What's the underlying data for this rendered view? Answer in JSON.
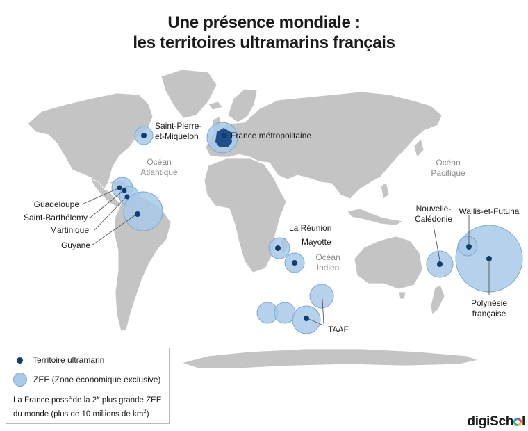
{
  "title": {
    "line1": "Une présence mondiale :",
    "line2": "les territoires ultramarins français"
  },
  "oceans": {
    "atlantic": [
      "Océan",
      "Atlantique"
    ],
    "pacific": [
      "Océan",
      "Pacifique"
    ],
    "indian": [
      "Océan",
      "Indien"
    ]
  },
  "territories": {
    "spm": [
      "Saint-Pierre-",
      "et-Miquelon"
    ],
    "france": "France métropolitaine",
    "guadeloupe": "Guadeloupe",
    "st_barth": "Saint-Barthélemy",
    "martinique": "Martinique",
    "guyane": "Guyane",
    "reunion": "La Réunion",
    "mayotte": "Mayotte",
    "taaf": "TAAF",
    "nc": [
      "Nouvelle-",
      "Calédonie"
    ],
    "wf": "Wallis-et-Futuna",
    "pf": [
      "Polynésie",
      "française"
    ]
  },
  "legend": {
    "territory": "Territoire ultramarin",
    "zee": "ZEE (Zone économique exclusive)",
    "note_line1_pre": "La France possède la 2",
    "note_line1_sup": "e",
    "note_line1_post": " plus grande ZEE",
    "note_line2_pre": "du monde (plus de 10 millions de km",
    "note_line2_sup": "2",
    "note_line2_post": ")"
  },
  "logo": {
    "pre": "digiSch",
    "post": "l"
  },
  "colors": {
    "land": "#c4c4c4",
    "zee": "#a9c9e8",
    "zee_stroke": "#7aa8d6",
    "dot": "#0f3d6e",
    "france": "#1f4f8a"
  }
}
